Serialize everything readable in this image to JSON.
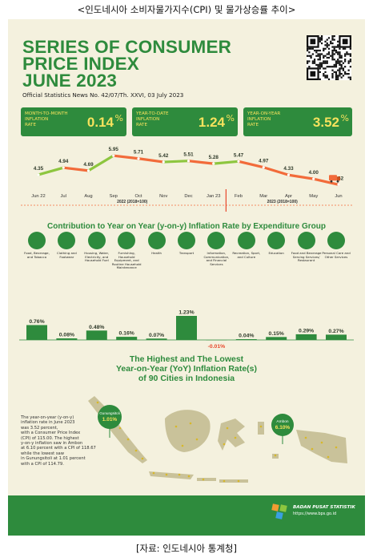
{
  "captions": {
    "top": "<인도네시아 소비자물가지수(CPI) 및 물가상승률 추이>",
    "bottom": "[자료: 인도네시아 통계청]"
  },
  "header": {
    "title_lines": [
      "SERIES OF CONSUMER",
      "PRICE INDEX",
      "JUNE 2023"
    ],
    "subtitle": "Official Statistics News No. 42/07/Th. XXVI, 03 July 2023"
  },
  "indicators": [
    {
      "lines": [
        "MONTH-TO-MONTH",
        "INFLATION",
        "RATE"
      ],
      "value": "0.14",
      "unit": "%"
    },
    {
      "lines": [
        "YEAR-TO-DATE",
        "INFLATION",
        "RATE"
      ],
      "value": "1.24",
      "unit": "%"
    },
    {
      "lines": [
        "YEAR-ON-YEAR",
        "INFLATION",
        "RATE"
      ],
      "value": "3.52",
      "unit": "%"
    }
  ],
  "chart_data": [
    {
      "type": "line",
      "title": "",
      "categories": [
        "Jun 22",
        "Jul",
        "Aug",
        "Sep",
        "Oct",
        "Nov",
        "Dec",
        "Jan 23",
        "Feb",
        "Mar",
        "Apr",
        "May",
        "Jun"
      ],
      "values": [
        4.35,
        4.94,
        4.69,
        5.95,
        5.71,
        5.42,
        5.51,
        5.28,
        5.47,
        4.97,
        4.33,
        4.0,
        3.52
      ],
      "value_labels": [
        "4.35",
        "4.94",
        "4.69",
        "5.95",
        "5.71",
        "5.42",
        "5.51",
        "5.28",
        "5.47",
        "4.97",
        "4.33",
        "4.00",
        "3.52"
      ],
      "base_labels": [
        "2022 (2018=100)",
        "2023 (2018=100)"
      ],
      "colors": {
        "rise": "#8dc63f",
        "fall": "#f26b3a"
      },
      "grid": false
    },
    {
      "type": "bar",
      "title": "Contribution to Year on Year (y-on-y) Inflation Rate by Expenditure Group",
      "categories": [
        "Food, Beverage, and Tobacco",
        "Clothing and Footwear",
        "Housing, Water, Electricity, and Household Fuel",
        "Furnishing, Household Equipment, and Routine Household Maintenance",
        "Health",
        "Transport",
        "Information, Communication, and Financial Services",
        "Recreation, Sport, and Culture",
        "Education",
        "Food and Beverage Serving Services/ Restaurant",
        "Personal Care and Other Services"
      ],
      "values": [
        0.76,
        0.08,
        0.48,
        0.16,
        0.07,
        1.23,
        -0.01,
        0.04,
        0.15,
        0.29,
        0.27
      ],
      "value_labels": [
        "0.76%",
        "0.08%",
        "0.48%",
        "0.16%",
        "0.07%",
        "1.23%",
        "-0.01%",
        "0.04%",
        "0.15%",
        "0.29%",
        "0.27%"
      ],
      "colors": {
        "bar": "#2e8b3d",
        "negative_label": "#e8472b"
      }
    }
  ],
  "map_section": {
    "title_lines": [
      "The Highest and The Lowest",
      "Year-on-Year (YoY) Inflation Rate(s)",
      "of 90 Cities in Indonesia"
    ],
    "lowest": {
      "city": "Gunungsitoli",
      "value": "1.01%"
    },
    "highest": {
      "city": "Ambon",
      "value": "6.10%"
    },
    "note_lines": [
      "The year-on-year (y-on-y)",
      "inflation rate in June 2023",
      "was 3.52 percent,",
      "with a Consumer Price Index",
      "(CPI) of 115.00. The highest",
      "y-on-y inflation saw in Ambon",
      "at 6.10 percent with a CPI of 118.67",
      "while the lowest saw",
      "in Gunungsitoli at 1.01 percent",
      "with a CPI of 114.79."
    ]
  },
  "footer": {
    "org": "BADAN PUSAT STATISTIK",
    "url": "https://www.bps.go.id"
  }
}
